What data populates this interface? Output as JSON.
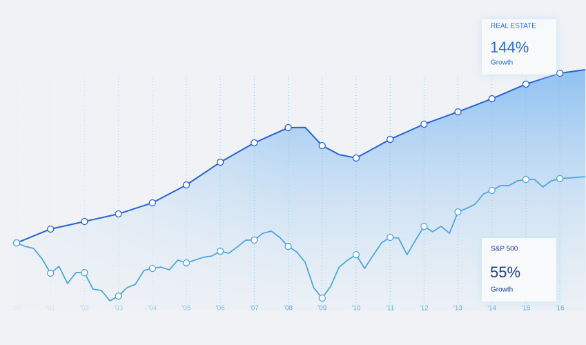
{
  "chart_data": {
    "type": "line",
    "xlim": [
      2000,
      2016.77
    ],
    "ylim": [
      -60,
      180
    ],
    "xticks": [
      {
        "value": 2000,
        "label": "'00"
      },
      {
        "value": 2001,
        "label": "'01"
      },
      {
        "value": 2002,
        "label": "'02"
      },
      {
        "value": 2003,
        "label": "'03"
      },
      {
        "value": 2004,
        "label": "'04"
      },
      {
        "value": 2005,
        "label": "'05"
      },
      {
        "value": 2006,
        "label": "'06"
      },
      {
        "value": 2007,
        "label": "'07"
      },
      {
        "value": 2008,
        "label": "'08"
      },
      {
        "value": 2009,
        "label": "'09"
      },
      {
        "value": 2010,
        "label": "'10"
      },
      {
        "value": 2011,
        "label": "'11"
      },
      {
        "value": 2012,
        "label": "'12"
      },
      {
        "value": 2013,
        "label": "'13"
      },
      {
        "value": 2014,
        "label": "'14"
      },
      {
        "value": 2015,
        "label": "'15"
      },
      {
        "value": 2016,
        "label": "'16"
      }
    ],
    "series": [
      {
        "name": "REAL ESTATE",
        "color": "#2563d9",
        "x": [
          2000,
          2001,
          2002,
          2003,
          2004,
          2005,
          2006,
          2007,
          2008,
          2008.5,
          2009,
          2009.5,
          2010,
          2011,
          2012,
          2013,
          2014,
          2015,
          2016,
          2016.75
        ],
        "values": [
          0,
          11.5,
          17.8,
          24.1,
          33.3,
          48.2,
          67.1,
          83.2,
          95.8,
          96,
          80.9,
          73.4,
          70.6,
          86.1,
          98.7,
          109,
          119.9,
          132,
          141.1,
          144
        ]
      },
      {
        "name": "S&P 500",
        "color": "#4ea6e0",
        "x": [
          2000,
          2000.25,
          2000.5,
          2000.75,
          2001,
          2001.25,
          2001.5,
          2001.75,
          2002,
          2002.25,
          2002.5,
          2002.75,
          2003,
          2003.25,
          2003.5,
          2003.75,
          2004,
          2004.25,
          2004.5,
          2004.75,
          2005,
          2005.25,
          2005.5,
          2005.75,
          2006,
          2006.25,
          2006.5,
          2006.75,
          2007,
          2007.25,
          2007.5,
          2007.75,
          2008,
          2008.25,
          2008.5,
          2008.75,
          2009,
          2009.25,
          2009.5,
          2009.75,
          2010,
          2010.25,
          2010.5,
          2010.75,
          2011,
          2011.25,
          2011.5,
          2011.75,
          2012,
          2012.25,
          2012.5,
          2012.75,
          2013,
          2013.25,
          2013.5,
          2013.75,
          2014,
          2014.25,
          2014.5,
          2014.75,
          2015,
          2015.25,
          2015.5,
          2015.75,
          2016,
          2016.75
        ],
        "values": [
          0,
          -2.9,
          -4.6,
          -13.2,
          -25.2,
          -19.5,
          -33.8,
          -24.7,
          -24.7,
          -38.4,
          -39.6,
          -48.2,
          -44.2,
          -37.3,
          -34.4,
          -22.9,
          -21.2,
          -20.1,
          -22.4,
          -14.3,
          -16.6,
          -14.3,
          -12,
          -10.9,
          -6.9,
          -8.6,
          -3.4,
          2.3,
          2.3,
          8,
          9.8,
          4.6,
          -2.9,
          -7.5,
          -16.1,
          -37.3,
          -45.9,
          -36.1,
          -20.1,
          -14.3,
          -9.8,
          -21.2,
          -10.3,
          0,
          4.6,
          4,
          -9.8,
          2.3,
          13.8,
          9.2,
          13.8,
          8,
          25.8,
          28.7,
          32.1,
          40.7,
          43.6,
          47.6,
          47.6,
          51.6,
          52.8,
          52.8,
          46.5,
          51.6,
          53.4,
          55
        ]
      }
    ],
    "annotations": [
      {
        "label": "REAL ESTATE",
        "value": "144%",
        "caption": "Growth"
      },
      {
        "label": "S&P 500",
        "value": "55%",
        "caption": "Growth"
      }
    ]
  }
}
